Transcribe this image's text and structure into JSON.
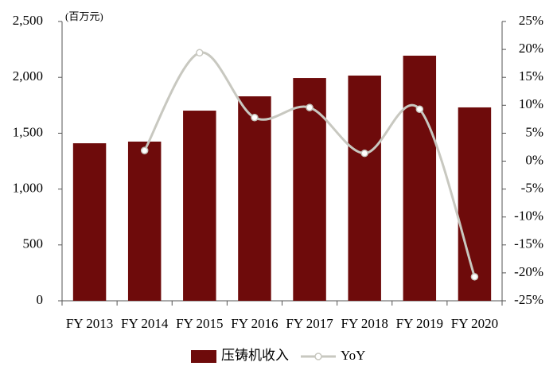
{
  "chart_data": {
    "type": "combo",
    "y_unit": "(百万元)",
    "categories": [
      "FY 2013",
      "FY 2014",
      "FY 2015",
      "FY 2016",
      "FY 2017",
      "FY 2018",
      "FY 2019",
      "FY 2020"
    ],
    "series": [
      {
        "name": "压铸机收入",
        "type": "bar",
        "color": "#6e0b0b",
        "values": [
          1410,
          1425,
          1702,
          1830,
          1994,
          2016,
          2194,
          1731
        ]
      },
      {
        "name": "YoY",
        "type": "line",
        "axis": "y2",
        "color": "#c8c8c0",
        "values": [
          null,
          1.9,
          19.4,
          7.8,
          9.6,
          1.4,
          9.3,
          -20.7
        ]
      }
    ],
    "ylim": [
      0,
      2500
    ],
    "yticks": [
      0,
      500,
      {
        "value": 1000,
        "label": "1,000"
      },
      {
        "value": 1500,
        "label": "1,500"
      },
      {
        "value": 2000,
        "label": "2,000"
      },
      {
        "value": 2500,
        "label": "2,500"
      }
    ],
    "y2lim": [
      -25,
      25
    ],
    "y2ticks": [
      {
        "value": -25,
        "label": "-25%"
      },
      {
        "value": -20,
        "label": "-20%"
      },
      {
        "value": -15,
        "label": "-15%"
      },
      {
        "value": -10,
        "label": "-10%"
      },
      {
        "value": -5,
        "label": "-5%"
      },
      {
        "value": 0,
        "label": "0%"
      },
      {
        "value": 5,
        "label": "5%"
      },
      {
        "value": 10,
        "label": "10%"
      },
      {
        "value": 15,
        "label": "15%"
      },
      {
        "value": 20,
        "label": "20%"
      },
      {
        "value": 25,
        "label": "25%"
      }
    ],
    "grid": false,
    "legend": "bottom"
  }
}
